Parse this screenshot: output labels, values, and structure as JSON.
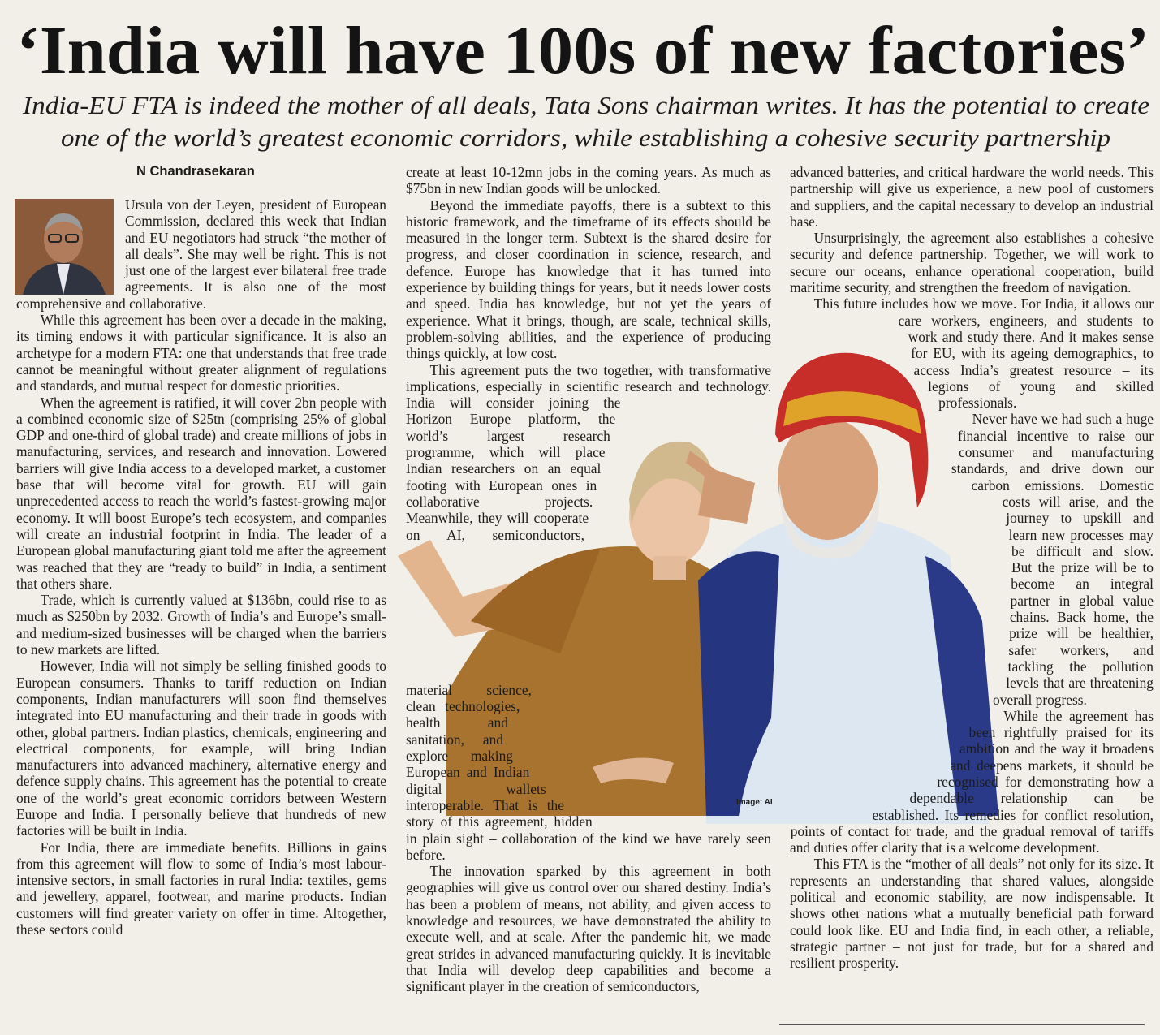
{
  "headline": "‘India will have 100s of new factories’",
  "standfirst": [
    "India-EU FTA is indeed the mother of all deals, Tata Sons chairman writes. It has the potential to create",
    "one of the world’s greatest economic corridors, while establishing a cohesive security partnership"
  ],
  "byline": "N Chandrasekaran",
  "image_credit": "Image: AI",
  "columns": [
    {
      "paragraphs": [
        "Ursula von der Leyen, president of European Commission, declared this week that Indian and EU negotiators had struck “the mother of all deals”. She may well be right. This is not just one of the largest ever bilateral free trade agreements. It is also one of the most comprehensive and collaborative.",
        "While this agreement has been over a decade in the making, its timing endows it with particular significance. It is also an archetype for a modern FTA: one that understands that free trade cannot be meaningful without greater alignment of regulations and standards, and mutual respect for domestic priorities.",
        "When the agreement is ratified, it will cover 2bn people with a combined economic size of $25tn (comprising 25% of global GDP and one-third of global trade) and create millions of jobs in manufacturing, services, and research and innovation. Lowered barriers will give India access to a developed market, a customer base that will become vital for growth. EU will gain unprecedented access to reach the world’s fastest-growing major economy. It will boost Europe’s tech ecosystem, and companies will create an industrial footprint in India. The leader of a European global manufacturing giant told me after the agreement was reached that they are “ready to build” in India, a sentiment that others share.",
        "Trade, which is currently valued at $136bn, could rise to as much as $250bn by 2032. Growth of India’s and Europe’s small- and medium-sized businesses will be charged when the barriers to new markets are lifted.",
        "However, India will not simply be selling finished goods to European consumers. Thanks to tariff reduction on Indian components, Indian manufacturers will soon find themselves integrated into EU manufacturing and their trade in goods with other, global partners. Indian plastics, chemicals, engineering and electrical components, for example, will bring Indian manufacturers into advanced machinery, alternative energy and defence supply chains. This agreement has the potential to create one of the world’s great economic corridors between Western Europe and India. I personally believe that hundreds of new factories will be built in India.",
        "For India, there are immediate benefits. Billions in gains from this agreement will flow to some of India’s most labour-intensive sectors, in small factories in rural India: textiles, gems and jewellery, apparel, footwear, and marine products. Indian customers will find greater variety on offer in time. Altogether, these sectors could"
      ]
    },
    {
      "paragraphs": [
        "create at least 10-12mn jobs in the coming years. As much as $75bn in new Indian goods will be unlocked.",
        "Beyond the immediate payoffs, there is a subtext to this historic framework, and the timeframe of its effects should be measured in the longer term. Subtext is the shared desire for progress, and closer coordination in science, research, and defence. Europe has knowledge that it has turned into experience by building things for years, but it needs lower costs and speed. India has knowledge, but not yet the years of experience. What it brings, though, are scale, technical skills, problem-solving abilities, and the experience of producing things quickly, at low cost.",
        "This agreement puts the two together, with transformative implications, especially in scientific research and technology. India will consider joining the Horizon Europe platform, the world’s largest research programme, which will place Indian researchers on an equal footing with European ones in collaborative projects. Meanwhile, they will cooperate on AI, semiconductors, material science, clean technologies, health and sanitation, and explore making European and Indian digital wallets interoperable. That is the story of this agreement, hidden in plain sight – collaboration of the kind we have rarely seen before.",
        "The innovation sparked by this agreement in both geographies will give us control over our shared destiny. India’s has been a problem of means, not ability, and given access to knowledge and resources, we have demonstrated the ability to execute well, and at scale. After the pandemic hit, we made great strides in advanced manufacturing quickly. It is inevitable that India will develop deep capabilities and become a significant player in the creation of semiconductors,"
      ]
    },
    {
      "paragraphs": [
        "advanced batteries, and critical hardware the world needs. This partnership will give us experience, a new pool of customers and suppliers, and the capital necessary to develop an industrial base.",
        "Unsurprisingly, the agreement also establishes a cohesive security and defence partnership. Together, we will work to secure our oceans, enhance operational cooperation, build maritime security, and strengthen the freedom of navigation.",
        "This future includes how we move. For India, it allows our care workers, engineers, and students to work and study there. And it makes sense for EU, with its ageing demographics, to access India’s greatest resource – its legions of young and skilled professionals.",
        "Never have we had such a huge financial incentive to raise our consumer and manufacturing standards, and drive down our carbon emissions. Domestic costs will arise, and the journey to upskill and learn new processes may be difficult and slow. But the prize will be to become an integral partner in global value chains. Back home, the prize will be healthier, safer workers, and tackling the pollution levels that are threatening overall progress.",
        "While the agreement has been rightfully praised for its ambition and the way it broadens and deepens markets, it should be recognised for demonstrating how a dependable relationship can be established. Its remedies for conflict resolution, points of contact for trade, and the gradual removal of tariffs and duties offer clarity that is a welcome development.",
        "This FTA is the “mother of all deals” not only for its size. It represents an understanding that shared values, alongside political and economic stability, are now indispensable. It shows other nations what a mutually beneficial path forward could look like. EU and India find, in each other, a reliable, strategic partner – not just for trade, but for a shared and resilient prosperity."
      ]
    }
  ]
}
